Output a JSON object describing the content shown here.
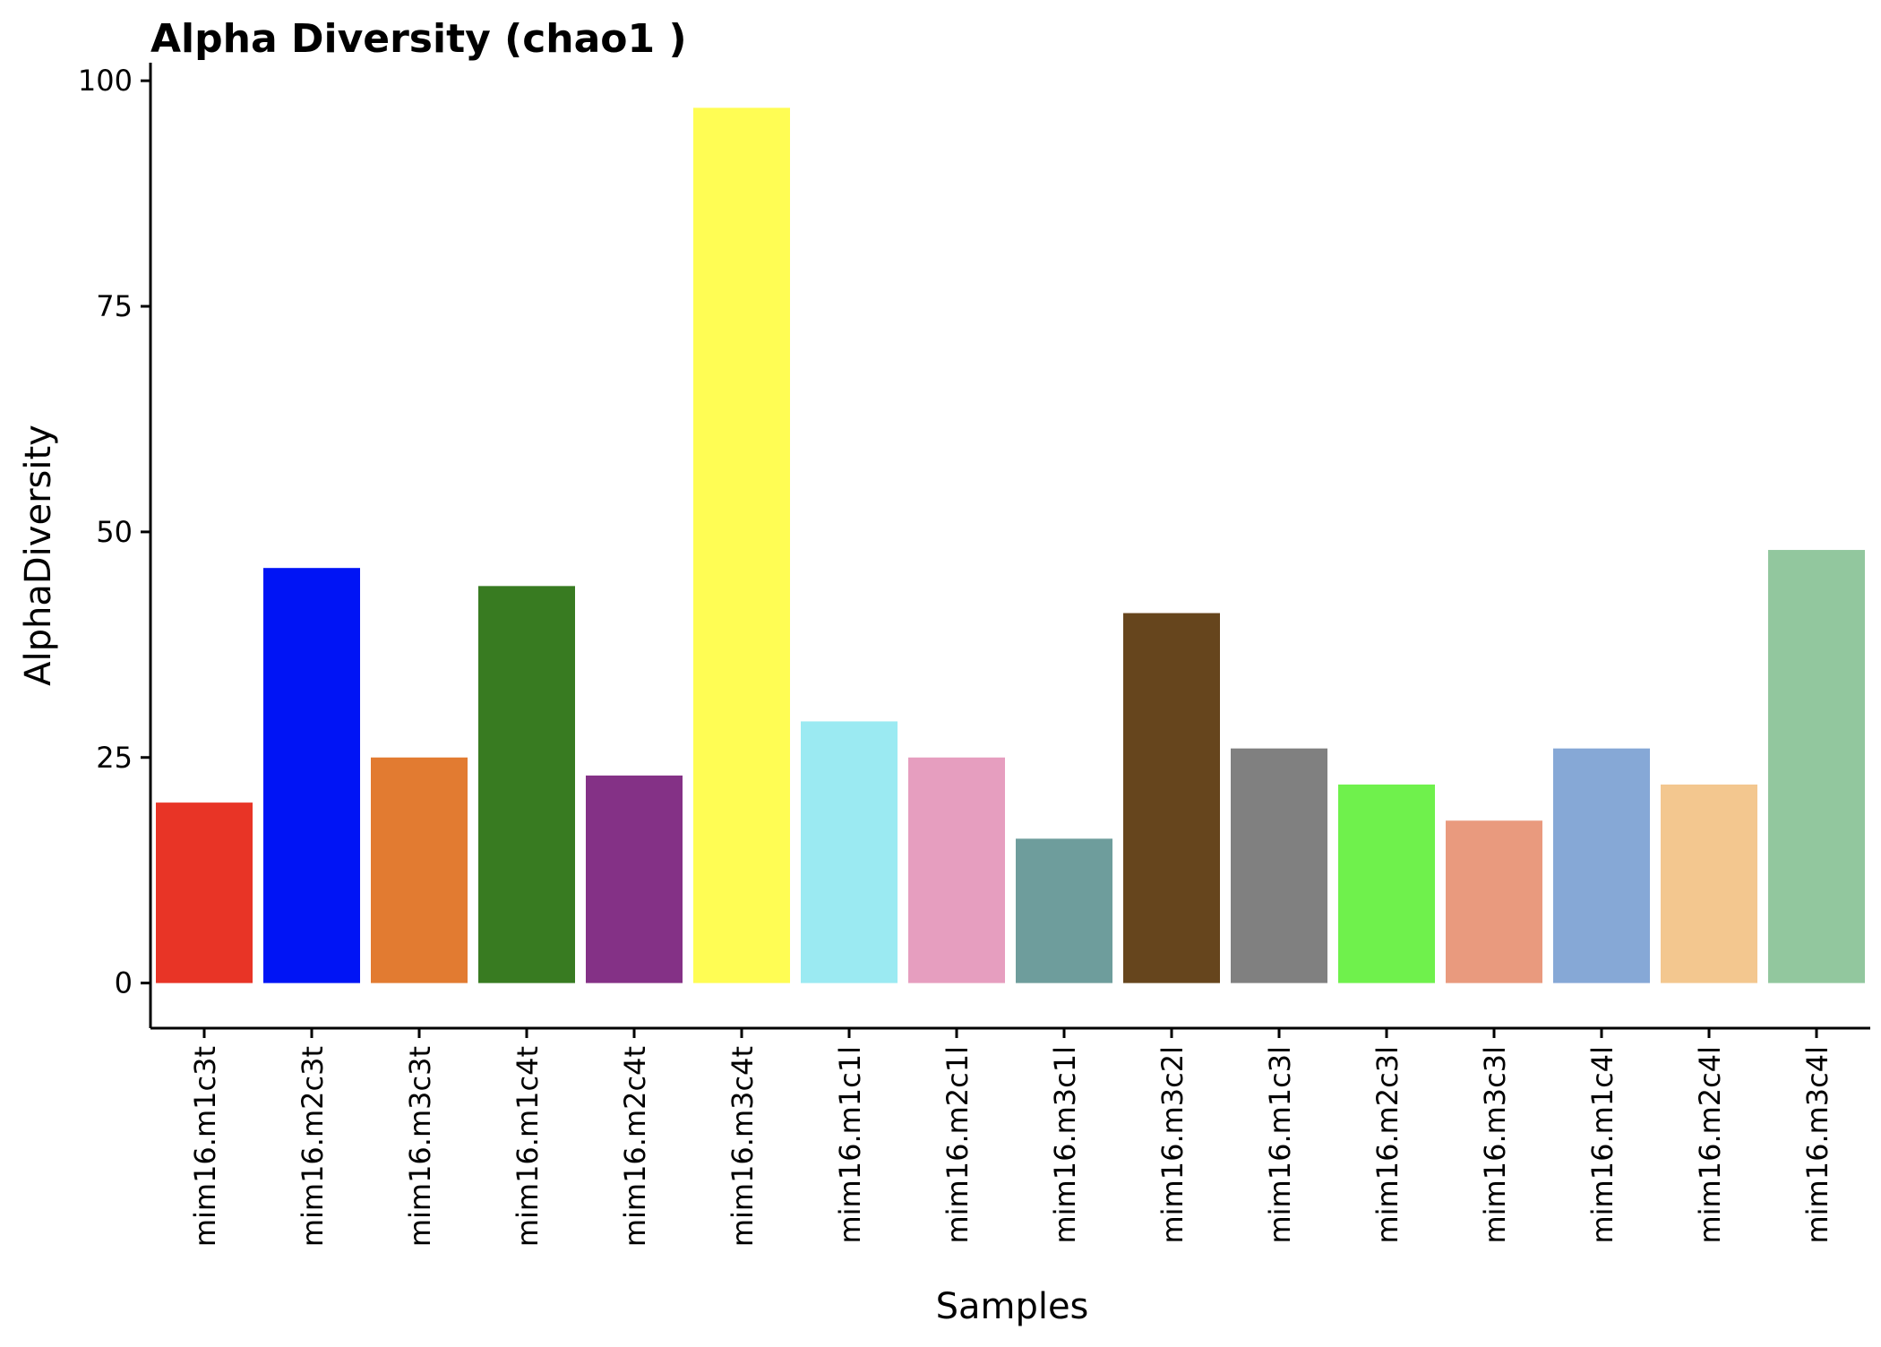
{
  "chart_data": {
    "type": "bar",
    "title": "Alpha Diversity (chao1 )",
    "xlabel": "Samples",
    "ylabel": "AlphaDiversity",
    "ylim": [
      -5,
      102
    ],
    "yticks": [
      0,
      25,
      50,
      75,
      100
    ],
    "grid": false,
    "legend": "none",
    "categories": [
      "mim16.m1c3t",
      "mim16.m2c3t",
      "mim16.m3c3t",
      "mim16.m1c4t",
      "mim16.m2c4t",
      "mim16.m3c4t",
      "mim16.m1c1l",
      "mim16.m2c1l",
      "mim16.m3c1l",
      "mim16.m3c2l",
      "mim16.m1c3l",
      "mim16.m2c3l",
      "mim16.m3c3l",
      "mim16.m1c4l",
      "mim16.m2c4l",
      "mim16.m3c4l"
    ],
    "values": [
      20,
      46,
      25,
      44,
      23,
      97,
      29,
      25,
      16,
      41,
      26,
      22,
      18,
      26,
      22,
      48
    ],
    "colors": [
      "#e83426",
      "#0014f5",
      "#e27b31",
      "#387b21",
      "#843186",
      "#fffd54",
      "#9beaf2",
      "#e69ebf",
      "#6e9d9c",
      "#66451d",
      "#808080",
      "#6ff14c",
      "#e99a7e",
      "#86a8d6",
      "#f3c78f",
      "#92c79e"
    ]
  }
}
